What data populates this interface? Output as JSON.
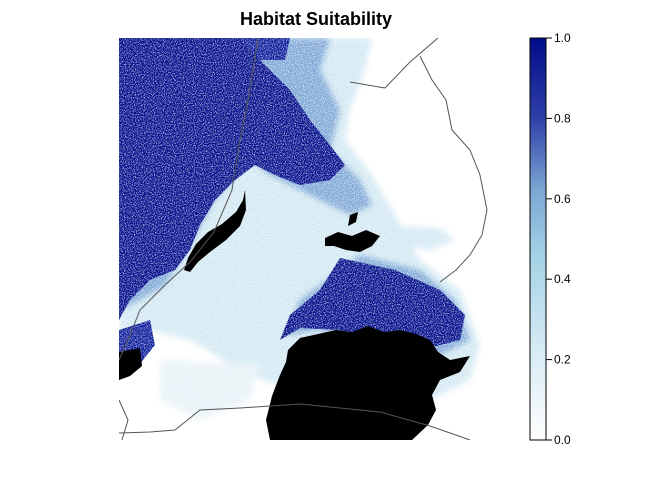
{
  "map": {
    "title": "Habitat Suitability",
    "type": "raster",
    "value_range": [
      0.0,
      1.0
    ],
    "palette": {
      "low": "#ffffff",
      "mid": "#a6d3e6",
      "high": "#000c8a",
      "water": "#000000",
      "border": "#555555"
    }
  },
  "legend": {
    "ticks": [
      "0.0",
      "0.2",
      "0.4",
      "0.6",
      "0.8",
      "1.0"
    ]
  }
}
